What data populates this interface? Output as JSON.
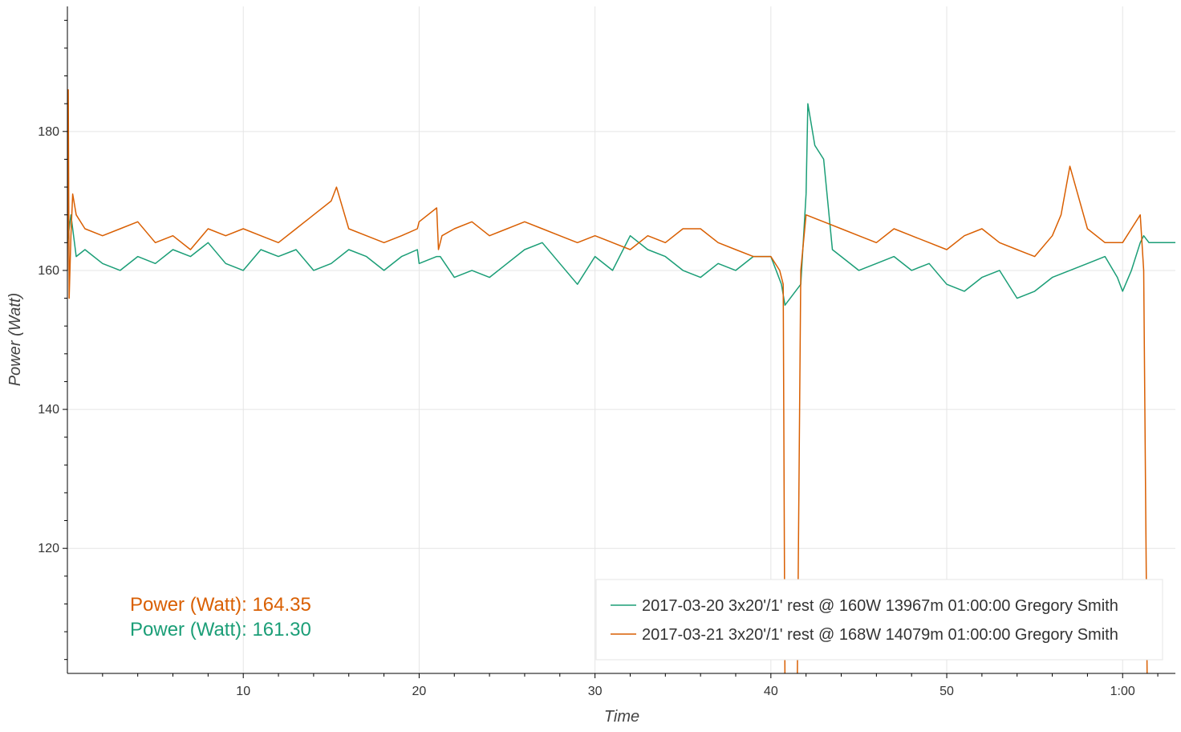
{
  "chart_data": {
    "type": "line",
    "xlabel": "Time",
    "ylabel": "Power (Watt)",
    "xlim": [
      0,
      63
    ],
    "ylim": [
      102,
      198
    ],
    "grid": true,
    "x_ticks": [
      {
        "value": 10,
        "label": "10"
      },
      {
        "value": 20,
        "label": "20"
      },
      {
        "value": 30,
        "label": "30"
      },
      {
        "value": 40,
        "label": "40"
      },
      {
        "value": 50,
        "label": "50"
      },
      {
        "value": 60,
        "label": "1:00"
      }
    ],
    "y_ticks": [
      {
        "value": 120,
        "label": "120"
      },
      {
        "value": 140,
        "label": "140"
      },
      {
        "value": 160,
        "label": "160"
      },
      {
        "value": 180,
        "label": "180"
      }
    ],
    "legend_position": "bottom-right",
    "annotations": [
      {
        "text": "Power (Watt): 164.35",
        "color": "#d95f02"
      },
      {
        "text": "Power (Watt): 161.30",
        "color": "#1b9e77"
      }
    ],
    "series": [
      {
        "name": "2017-03-20 3x20'/1' rest @ 160W 13967m 01:00:00 Gregory Smith",
        "color": "#1b9e77",
        "x": [
          0.0,
          0.2,
          0.5,
          1.0,
          2.0,
          3.0,
          4.0,
          5.0,
          6.0,
          7.0,
          8.0,
          9.0,
          10.0,
          11.0,
          12.0,
          13.0,
          14.0,
          15.0,
          16.0,
          17.0,
          18.0,
          19.0,
          19.9,
          20.0,
          21.0,
          21.2,
          22.0,
          23.0,
          24.0,
          25.0,
          26.0,
          27.0,
          28.0,
          29.0,
          30.0,
          31.0,
          32.0,
          33.0,
          34.0,
          35.0,
          36.0,
          37.0,
          38.0,
          39.0,
          40.0,
          40.6,
          40.8,
          41.7,
          42.0,
          42.1,
          42.5,
          43.0,
          43.5,
          44.0,
          45.0,
          46.0,
          47.0,
          48.0,
          49.0,
          50.0,
          51.0,
          52.0,
          53.0,
          54.0,
          55.0,
          56.0,
          57.0,
          58.0,
          59.0,
          59.7,
          60.0,
          60.5,
          61.0,
          61.2,
          61.5,
          63.0
        ],
        "y": [
          164,
          168,
          162,
          163,
          161,
          160,
          162,
          161,
          163,
          162,
          164,
          161,
          160,
          163,
          162,
          163,
          160,
          161,
          163,
          162,
          160,
          162,
          163,
          161,
          162,
          162,
          159,
          160,
          159,
          161,
          163,
          164,
          161,
          158,
          162,
          160,
          165,
          163,
          162,
          160,
          159,
          161,
          160,
          162,
          162,
          158,
          155,
          158,
          171,
          184,
          178,
          176,
          163,
          162,
          160,
          161,
          162,
          160,
          161,
          158,
          157,
          159,
          160,
          156,
          157,
          159,
          160,
          161,
          162,
          159,
          157,
          160,
          164,
          165,
          164,
          164
        ]
      },
      {
        "name": "2017-03-21 3x20'/1' rest @ 168W 14079m 01:00:00 Gregory Smith",
        "color": "#d95f02",
        "x": [
          0.0,
          0.05,
          0.1,
          0.2,
          0.3,
          0.5,
          1.0,
          2.0,
          3.0,
          4.0,
          5.0,
          6.0,
          7.0,
          8.0,
          9.0,
          10.0,
          11.0,
          12.0,
          13.0,
          14.0,
          15.0,
          15.3,
          16.0,
          17.0,
          18.0,
          19.0,
          19.9,
          20.0,
          21.0,
          21.1,
          21.3,
          22.0,
          23.0,
          24.0,
          25.0,
          26.0,
          27.0,
          28.0,
          29.0,
          30.0,
          31.0,
          32.0,
          33.0,
          34.0,
          35.0,
          36.0,
          37.0,
          38.0,
          39.0,
          40.0,
          40.5,
          40.7,
          40.8,
          41.5,
          41.7,
          42.0,
          43.0,
          44.0,
          45.0,
          46.0,
          47.0,
          48.0,
          49.0,
          50.0,
          51.0,
          52.0,
          53.0,
          54.0,
          55.0,
          56.0,
          56.5,
          57.0,
          58.0,
          59.0,
          60.0,
          60.5,
          61.0,
          61.2,
          61.4,
          61.6,
          63.0
        ],
        "y": [
          160,
          186,
          156,
          165,
          171,
          168,
          166,
          165,
          166,
          167,
          164,
          165,
          163,
          166,
          165,
          166,
          165,
          164,
          166,
          168,
          170,
          172,
          166,
          165,
          164,
          165,
          166,
          167,
          169,
          163,
          165,
          166,
          167,
          165,
          166,
          167,
          166,
          165,
          164,
          165,
          164,
          163,
          165,
          164,
          166,
          166,
          164,
          163,
          162,
          162,
          160,
          158,
          100,
          100,
          160,
          168,
          167,
          166,
          165,
          164,
          166,
          165,
          164,
          163,
          165,
          166,
          164,
          163,
          162,
          165,
          168,
          175,
          166,
          164,
          164,
          166,
          168,
          160,
          100,
          100,
          100
        ]
      }
    ]
  }
}
